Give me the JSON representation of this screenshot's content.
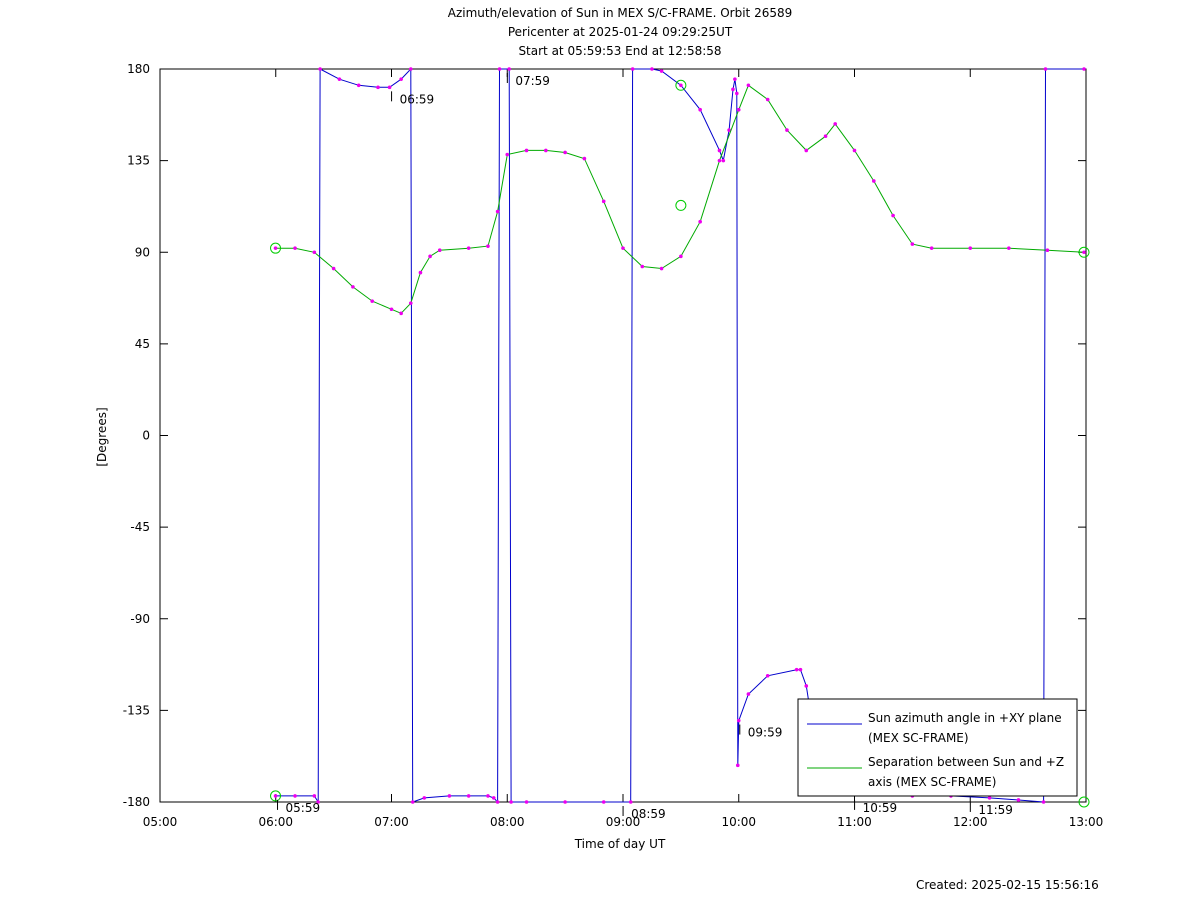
{
  "chart_data": {
    "type": "line",
    "title": "Azimuth/elevation of Sun in MEX S/C-FRAME.  Orbit 26589",
    "subtitle1": "Pericenter at 2025-01-24 09:29:25UT",
    "subtitle2": "Start at 05:59:53 End at 12:58:58",
    "xlabel": "Time of day UT",
    "ylabel": "[Degrees]",
    "xlim": [
      "05:00",
      "13:00"
    ],
    "ylim": [
      -180,
      180
    ],
    "x_ticks": [
      "05:00",
      "06:00",
      "07:00",
      "08:00",
      "09:00",
      "10:00",
      "11:00",
      "12:00",
      "13:00"
    ],
    "y_ticks": [
      "180",
      "135",
      "90",
      "45",
      "0",
      "-45",
      "-90",
      "-135",
      "-180"
    ],
    "legend_position": "bottom-right",
    "series": [
      {
        "name": "Sun azimuth angle in +XY plane (MEX SC-FRAME)",
        "color": "#0000cc",
        "points": [
          [
            "05:59:53",
            -177
          ],
          [
            "06:10",
            -177
          ],
          [
            "06:20",
            -177
          ],
          [
            "06:22",
            -180
          ],
          [
            "06:23",
            180
          ],
          [
            "06:33",
            175
          ],
          [
            "06:43",
            172
          ],
          [
            "06:53",
            171
          ],
          [
            "06:59",
            171
          ],
          [
            "07:05",
            175
          ],
          [
            "07:10",
            180
          ],
          [
            "07:11",
            -180
          ],
          [
            "07:17",
            -178
          ],
          [
            "07:30",
            -177
          ],
          [
            "07:40",
            -177
          ],
          [
            "07:50",
            -177
          ],
          [
            "07:53",
            -178
          ],
          [
            "07:55",
            -180
          ],
          [
            "07:56",
            180
          ],
          [
            "08:01",
            180
          ],
          [
            "08:02",
            -180
          ],
          [
            "08:10",
            -180
          ],
          [
            "08:30",
            -180
          ],
          [
            "08:50",
            -180
          ],
          [
            "09:04",
            -180
          ],
          [
            "09:05",
            180
          ],
          [
            "09:15",
            180
          ],
          [
            "09:20",
            179
          ],
          [
            "09:30",
            172
          ],
          [
            "09:40",
            160
          ],
          [
            "09:50",
            140
          ],
          [
            "09:52",
            135
          ],
          [
            "09:55",
            150
          ],
          [
            "09:57",
            170
          ],
          [
            "09:58",
            175
          ],
          [
            "09:59",
            168
          ],
          [
            "09:59:30",
            -162
          ],
          [
            "10:00",
            -140
          ],
          [
            "10:05",
            -127
          ],
          [
            "10:15",
            -118
          ],
          [
            "10:30",
            -115
          ],
          [
            "10:32",
            -115
          ],
          [
            "10:35",
            -123
          ],
          [
            "10:37",
            -135
          ],
          [
            "10:40",
            -145
          ],
          [
            "10:50",
            -160
          ],
          [
            "11:00",
            -170
          ],
          [
            "11:10",
            -176
          ],
          [
            "11:30",
            -177
          ],
          [
            "11:50",
            -177
          ],
          [
            "12:10",
            -178
          ],
          [
            "12:25",
            -179
          ],
          [
            "12:38",
            -180
          ],
          [
            "12:39",
            180
          ],
          [
            "12:58:58",
            180
          ]
        ]
      },
      {
        "name": "Separation between Sun and +Z axis (MEX SC-FRAME)",
        "color": "#00aa00",
        "points": [
          [
            "05:59:53",
            92
          ],
          [
            "06:10",
            92
          ],
          [
            "06:20",
            90
          ],
          [
            "06:30",
            82
          ],
          [
            "06:40",
            73
          ],
          [
            "06:50",
            66
          ],
          [
            "07:00",
            62
          ],
          [
            "07:05",
            60
          ],
          [
            "07:10",
            65
          ],
          [
            "07:15",
            80
          ],
          [
            "07:20",
            88
          ],
          [
            "07:25",
            91
          ],
          [
            "07:40",
            92
          ],
          [
            "07:50",
            93
          ],
          [
            "07:55",
            110
          ],
          [
            "08:00",
            138
          ],
          [
            "08:10",
            140
          ],
          [
            "08:20",
            140
          ],
          [
            "08:30",
            139
          ],
          [
            "08:40",
            136
          ],
          [
            "08:50",
            115
          ],
          [
            "09:00",
            92
          ],
          [
            "09:10",
            83
          ],
          [
            "09:20",
            82
          ],
          [
            "09:30",
            88
          ],
          [
            "09:40",
            105
          ],
          [
            "09:50",
            135
          ],
          [
            "10:00",
            160
          ],
          [
            "10:05",
            172
          ],
          [
            "10:15",
            165
          ],
          [
            "10:25",
            150
          ],
          [
            "10:35",
            140
          ],
          [
            "10:45",
            147
          ],
          [
            "10:50",
            153
          ],
          [
            "11:00",
            140
          ],
          [
            "11:10",
            125
          ],
          [
            "11:20",
            108
          ],
          [
            "11:30",
            94
          ],
          [
            "11:40",
            92
          ],
          [
            "12:00",
            92
          ],
          [
            "12:20",
            92
          ],
          [
            "12:40",
            91
          ],
          [
            "12:58:58",
            90
          ]
        ]
      }
    ],
    "annotations": [
      {
        "text": "05:59",
        "x": "05:59:53",
        "y": -177
      },
      {
        "text": "06:59",
        "x": "06:59",
        "y": 171
      },
      {
        "text": "07:59",
        "x": "07:59",
        "y": 180
      },
      {
        "text": "08:59",
        "x": "08:59",
        "y": -180
      },
      {
        "text": "09:59",
        "x": "09:59:30",
        "y": -140
      },
      {
        "text": "10:59",
        "x": "10:59",
        "y": -177
      },
      {
        "text": "11:59",
        "x": "11:59",
        "y": -178
      }
    ],
    "created": "Created: 2025-02-15 15:56:16"
  }
}
